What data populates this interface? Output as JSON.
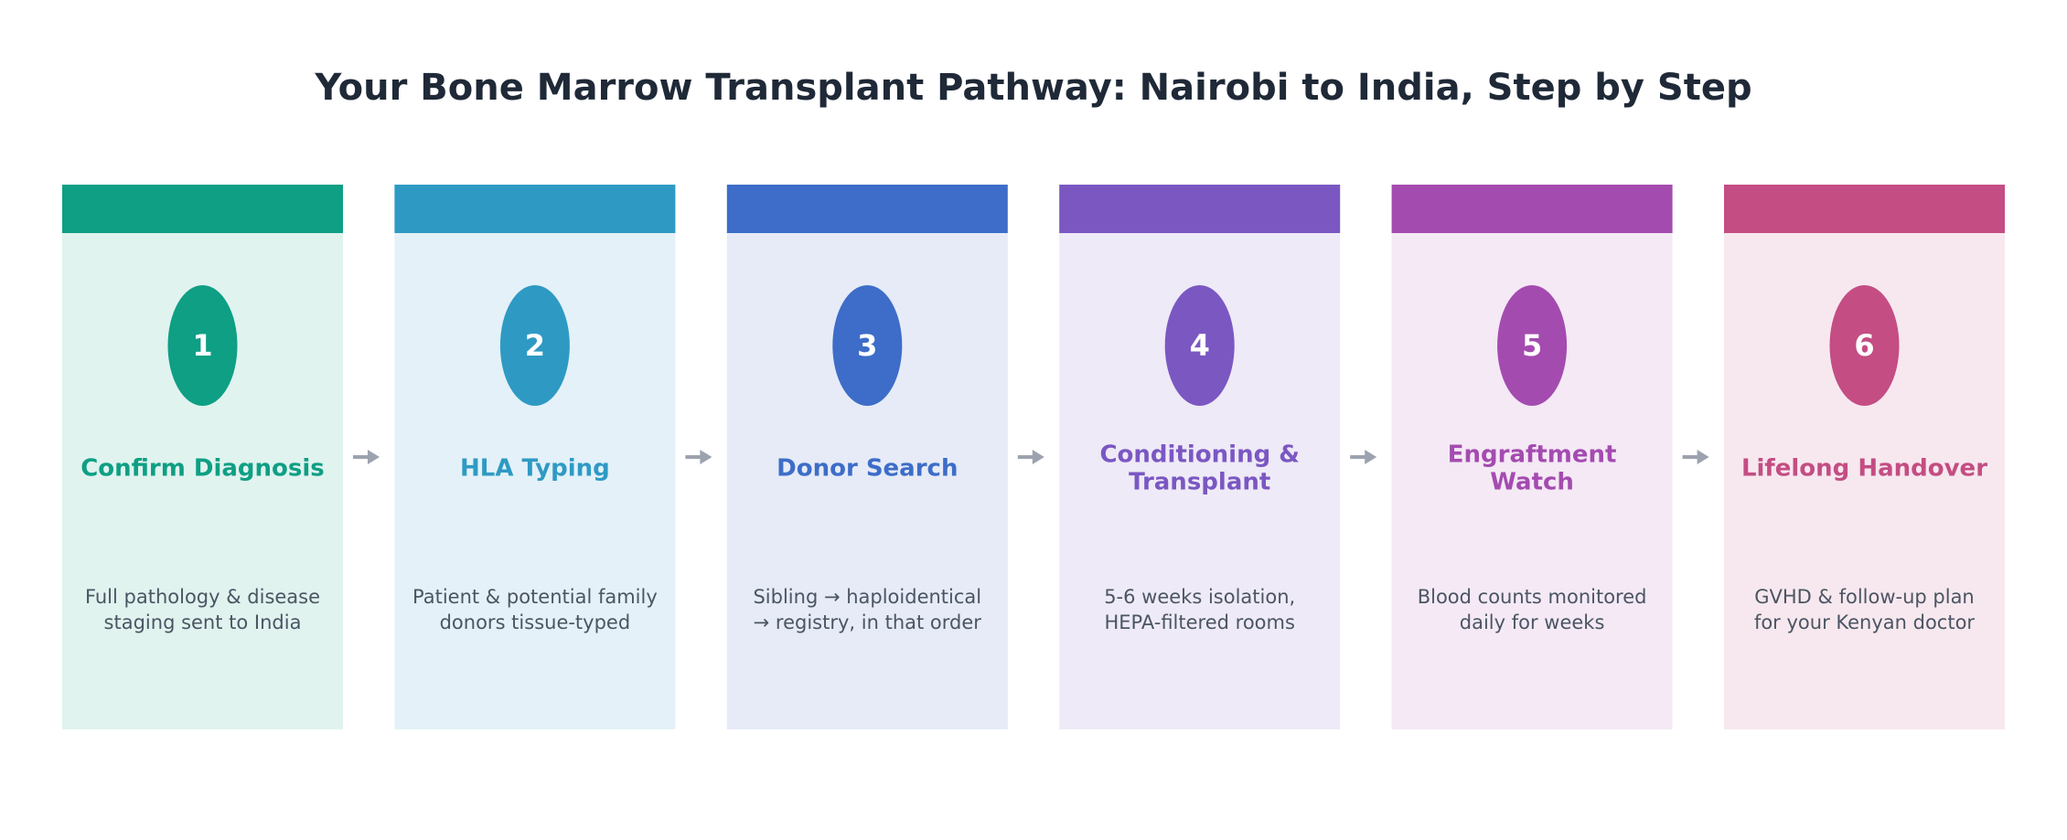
{
  "title": "Your Bone Marrow Transplant Pathway: Nairobi to India, Step by Step",
  "steps": [
    {
      "number": "1",
      "title": [
        "Confirm Diagnosis"
      ],
      "description": [
        "Full pathology & disease",
        "staging sent to India"
      ],
      "color": "#0e9f84",
      "background": "#e0f3ef"
    },
    {
      "number": "2",
      "title": [
        "HLA Typing"
      ],
      "description": [
        "Patient & potential family",
        "donors tissue-typed"
      ],
      "color": "#2e9ac4",
      "background": "#e4f1f8"
    },
    {
      "number": "3",
      "title": [
        "Donor Search"
      ],
      "description": [
        "Sibling → haploidentical",
        "→ registry, in that order"
      ],
      "color": "#3d6dc8",
      "background": "#e6ebf7"
    },
    {
      "number": "4",
      "title": [
        "Conditioning &",
        "Transplant"
      ],
      "description": [
        "5-6 weeks isolation,",
        "HEPA-filtered rooms"
      ],
      "color": "#7b57c2",
      "background": "#eeeaf7"
    },
    {
      "number": "5",
      "title": [
        "Engraftment",
        "Watch"
      ],
      "description": [
        "Blood counts monitored",
        "daily for weeks"
      ],
      "color": "#a44bb0",
      "background": "#f4e9f5"
    },
    {
      "number": "6",
      "title": [
        "Lifelong Handover"
      ],
      "description": [
        "GVHD & follow-up plan",
        "for your Kenyan doctor"
      ],
      "color": "#c44d83",
      "background": "#f7e8ef"
    }
  ]
}
